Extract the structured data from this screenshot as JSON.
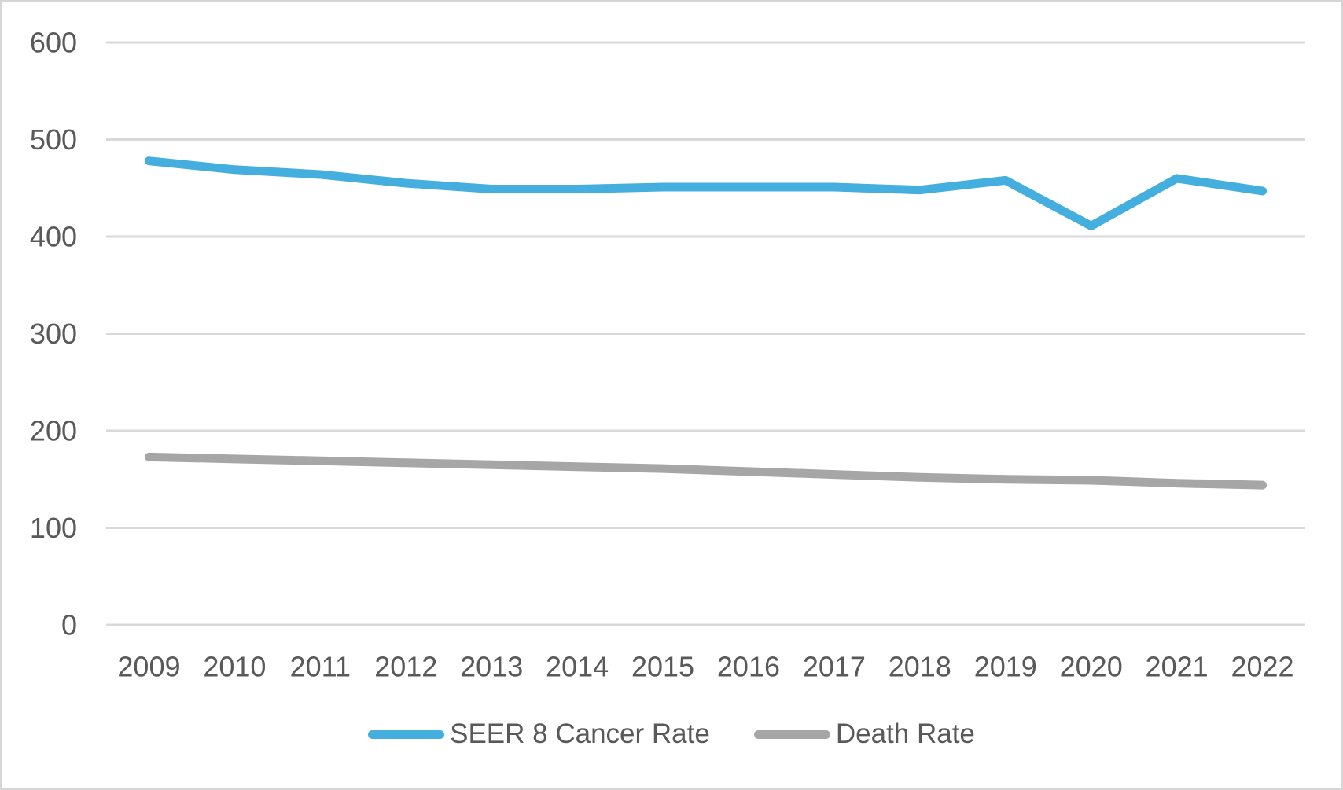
{
  "chart_data": {
    "type": "line",
    "title": "",
    "xlabel": "",
    "ylabel": "",
    "categories": [
      "2009",
      "2010",
      "2011",
      "2012",
      "2013",
      "2014",
      "2015",
      "2016",
      "2017",
      "2018",
      "2019",
      "2020",
      "2021",
      "2022"
    ],
    "series": [
      {
        "name": "SEER 8 Cancer Rate",
        "color": "#44afdf",
        "values": [
          478,
          469,
          464,
          455,
          449,
          449,
          451,
          451,
          451,
          448,
          458,
          411,
          460,
          447
        ]
      },
      {
        "name": "Death Rate",
        "color": "#a6a6a6",
        "values": [
          173,
          171,
          169,
          167,
          165,
          163,
          161,
          158,
          155,
          152,
          150,
          149,
          146,
          144
        ]
      }
    ],
    "ylim": [
      0,
      600
    ],
    "yticks": [
      0,
      100,
      200,
      300,
      400,
      500,
      600
    ],
    "grid": true,
    "legend_position": "bottom"
  },
  "colors": {
    "axis_text": "#595959",
    "gridline": "#d9d9d9",
    "background": "#ffffff",
    "border": "#d6d6d6"
  }
}
